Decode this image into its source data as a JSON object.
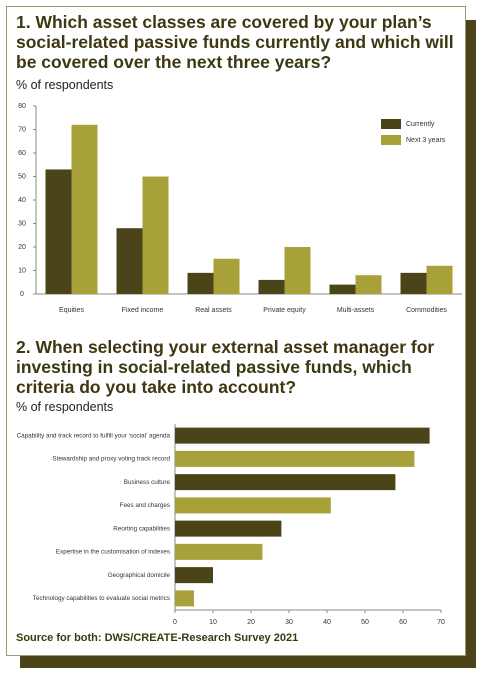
{
  "chart_data": [
    {
      "type": "bar",
      "title": "1. Which asset classes are covered by your plan’s social-related passive funds currently and which will be covered over the next three years?",
      "subtitle": "% of respondents",
      "categories": [
        "Equities",
        "Fixed income",
        "Real assets",
        "Private equity",
        "Multi-assets",
        "Commodities"
      ],
      "series": [
        {
          "name": "Currently",
          "color": "#4a4418",
          "values": [
            53,
            28,
            9,
            6,
            4,
            9
          ]
        },
        {
          "name": "Next 3 years",
          "color": "#a8a038",
          "values": [
            72,
            50,
            15,
            20,
            8,
            12
          ]
        }
      ],
      "ylim": [
        0,
        80
      ],
      "yticks": [
        0,
        10,
        20,
        30,
        40,
        50,
        60,
        70,
        80
      ],
      "legend": "top-right"
    },
    {
      "type": "barh",
      "title": "2. When selecting your external asset manager for investing in social-related passive funds, which criteria do you take into account?",
      "subtitle": "% of respondents",
      "categories": [
        "Capability and track record to fulfill your ‘social’ agenda",
        "Stewardship and proxy voting track record",
        "Business culture",
        "Fees and charges",
        "Reorting capabilities",
        "Expertise in the customisation of indexes",
        "Geographical domicile",
        "Technology capabilities to evaluate social metrics"
      ],
      "values": [
        67,
        63,
        58,
        41,
        28,
        23,
        10,
        5
      ],
      "colors": [
        "#4a4418",
        "#a8a038",
        "#4a4418",
        "#a8a038",
        "#4a4418",
        "#a8a038",
        "#4a4418",
        "#a8a038"
      ],
      "xlim": [
        0,
        70
      ],
      "xticks": [
        0,
        10,
        20,
        30,
        40,
        50,
        60,
        70
      ]
    }
  ],
  "source": "Source for both: DWS/CREATE-Research Survey 2021"
}
